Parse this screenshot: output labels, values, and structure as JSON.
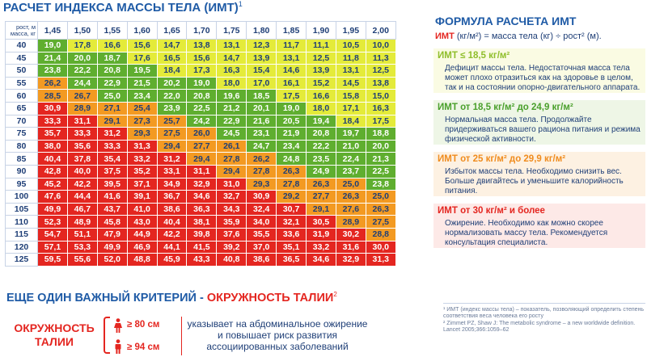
{
  "title": {
    "text": "РАСЧЕТ ИНДЕКСА МАССЫ ТЕЛА (ИМТ)",
    "sup": "1"
  },
  "table": {
    "corner_top": "рост, м",
    "corner_bottom": "масса, кг",
    "heights": [
      "1,45",
      "1,50",
      "1,55",
      "1,60",
      "1,65",
      "1,70",
      "1,75",
      "1,80",
      "1,85",
      "1,90",
      "1,95",
      "2,00"
    ],
    "rows": [
      {
        "mass": "40",
        "cells": [
          [
            "19,0",
            "g"
          ],
          [
            "17,8",
            "y"
          ],
          [
            "16,6",
            "y"
          ],
          [
            "15,6",
            "y"
          ],
          [
            "14,7",
            "y"
          ],
          [
            "13,8",
            "y"
          ],
          [
            "13,1",
            "y"
          ],
          [
            "12,3",
            "y"
          ],
          [
            "11,7",
            "y"
          ],
          [
            "11,1",
            "y"
          ],
          [
            "10,5",
            "y"
          ],
          [
            "10,0",
            "y"
          ]
        ]
      },
      {
        "mass": "45",
        "cells": [
          [
            "21,4",
            "g"
          ],
          [
            "20,0",
            "g"
          ],
          [
            "18,7",
            "g"
          ],
          [
            "17,6",
            "y"
          ],
          [
            "16,5",
            "y"
          ],
          [
            "15,6",
            "y"
          ],
          [
            "14,7",
            "y"
          ],
          [
            "13,9",
            "y"
          ],
          [
            "13,1",
            "y"
          ],
          [
            "12,5",
            "y"
          ],
          [
            "11,8",
            "y"
          ],
          [
            "11,3",
            "y"
          ]
        ]
      },
      {
        "mass": "50",
        "cells": [
          [
            "23,8",
            "g"
          ],
          [
            "22,2",
            "g"
          ],
          [
            "20,8",
            "g"
          ],
          [
            "19,5",
            "g"
          ],
          [
            "18,4",
            "y"
          ],
          [
            "17,3",
            "y"
          ],
          [
            "16,3",
            "y"
          ],
          [
            "15,4",
            "y"
          ],
          [
            "14,6",
            "y"
          ],
          [
            "13,9",
            "y"
          ],
          [
            "13,1",
            "y"
          ],
          [
            "12,5",
            "y"
          ]
        ]
      },
      {
        "mass": "55",
        "cells": [
          [
            "26,2",
            "o"
          ],
          [
            "24,4",
            "g"
          ],
          [
            "22,9",
            "g"
          ],
          [
            "21,5",
            "g"
          ],
          [
            "20,2",
            "g"
          ],
          [
            "19,0",
            "g"
          ],
          [
            "18,0",
            "y"
          ],
          [
            "17,0",
            "y"
          ],
          [
            "16,1",
            "y"
          ],
          [
            "15,2",
            "y"
          ],
          [
            "14,5",
            "y"
          ],
          [
            "13,8",
            "y"
          ]
        ]
      },
      {
        "mass": "60",
        "cells": [
          [
            "28,5",
            "o"
          ],
          [
            "26,7",
            "o"
          ],
          [
            "25,0",
            "g"
          ],
          [
            "23,4",
            "g"
          ],
          [
            "22,0",
            "g"
          ],
          [
            "20,8",
            "g"
          ],
          [
            "19,6",
            "g"
          ],
          [
            "18,5",
            "g"
          ],
          [
            "17,5",
            "y"
          ],
          [
            "16,6",
            "y"
          ],
          [
            "15,8",
            "y"
          ],
          [
            "15,0",
            "y"
          ]
        ]
      },
      {
        "mass": "65",
        "cells": [
          [
            "30,9",
            "r"
          ],
          [
            "28,9",
            "o"
          ],
          [
            "27,1",
            "o"
          ],
          [
            "25,4",
            "o"
          ],
          [
            "23,9",
            "g"
          ],
          [
            "22,5",
            "g"
          ],
          [
            "21,2",
            "g"
          ],
          [
            "20,1",
            "g"
          ],
          [
            "19,0",
            "g"
          ],
          [
            "18,0",
            "y"
          ],
          [
            "17,1",
            "y"
          ],
          [
            "16,3",
            "y"
          ]
        ]
      },
      {
        "mass": "70",
        "cells": [
          [
            "33,3",
            "r"
          ],
          [
            "31,1",
            "r"
          ],
          [
            "29,1",
            "o"
          ],
          [
            "27,3",
            "o"
          ],
          [
            "25,7",
            "o"
          ],
          [
            "24,2",
            "g"
          ],
          [
            "22,9",
            "g"
          ],
          [
            "21,6",
            "g"
          ],
          [
            "20,5",
            "g"
          ],
          [
            "19,4",
            "g"
          ],
          [
            "18,4",
            "y"
          ],
          [
            "17,5",
            "y"
          ]
        ]
      },
      {
        "mass": "75",
        "cells": [
          [
            "35,7",
            "r"
          ],
          [
            "33,3",
            "r"
          ],
          [
            "31,2",
            "r"
          ],
          [
            "29,3",
            "o"
          ],
          [
            "27,5",
            "o"
          ],
          [
            "26,0",
            "o"
          ],
          [
            "24,5",
            "g"
          ],
          [
            "23,1",
            "g"
          ],
          [
            "21,9",
            "g"
          ],
          [
            "20,8",
            "g"
          ],
          [
            "19,7",
            "g"
          ],
          [
            "18,8",
            "g"
          ]
        ]
      },
      {
        "mass": "80",
        "cells": [
          [
            "38,0",
            "r"
          ],
          [
            "35,6",
            "r"
          ],
          [
            "33,3",
            "r"
          ],
          [
            "31,3",
            "r"
          ],
          [
            "29,4",
            "o"
          ],
          [
            "27,7",
            "o"
          ],
          [
            "26,1",
            "o"
          ],
          [
            "24,7",
            "g"
          ],
          [
            "23,4",
            "g"
          ],
          [
            "22,2",
            "g"
          ],
          [
            "21,0",
            "g"
          ],
          [
            "20,0",
            "g"
          ]
        ]
      },
      {
        "mass": "85",
        "cells": [
          [
            "40,4",
            "r"
          ],
          [
            "37,8",
            "r"
          ],
          [
            "35,4",
            "r"
          ],
          [
            "33,2",
            "r"
          ],
          [
            "31,2",
            "r"
          ],
          [
            "29,4",
            "o"
          ],
          [
            "27,8",
            "o"
          ],
          [
            "26,2",
            "o"
          ],
          [
            "24,8",
            "g"
          ],
          [
            "23,5",
            "g"
          ],
          [
            "22,4",
            "g"
          ],
          [
            "21,3",
            "g"
          ]
        ]
      },
      {
        "mass": "90",
        "cells": [
          [
            "42,8",
            "r"
          ],
          [
            "40,0",
            "r"
          ],
          [
            "37,5",
            "r"
          ],
          [
            "35,2",
            "r"
          ],
          [
            "33,1",
            "r"
          ],
          [
            "31,1",
            "r"
          ],
          [
            "29,4",
            "o"
          ],
          [
            "27,8",
            "o"
          ],
          [
            "26,3",
            "o"
          ],
          [
            "24,9",
            "g"
          ],
          [
            "23,7",
            "g"
          ],
          [
            "22,5",
            "g"
          ]
        ]
      },
      {
        "mass": "95",
        "cells": [
          [
            "45,2",
            "r"
          ],
          [
            "42,2",
            "r"
          ],
          [
            "39,5",
            "r"
          ],
          [
            "37,1",
            "r"
          ],
          [
            "34,9",
            "r"
          ],
          [
            "32,9",
            "r"
          ],
          [
            "31,0",
            "r"
          ],
          [
            "29,3",
            "o"
          ],
          [
            "27,8",
            "o"
          ],
          [
            "26,3",
            "o"
          ],
          [
            "25,0",
            "o"
          ],
          [
            "23,8",
            "g"
          ]
        ]
      },
      {
        "mass": "100",
        "cells": [
          [
            "47,6",
            "r"
          ],
          [
            "44,4",
            "r"
          ],
          [
            "41,6",
            "r"
          ],
          [
            "39,1",
            "r"
          ],
          [
            "36,7",
            "r"
          ],
          [
            "34,6",
            "r"
          ],
          [
            "32,7",
            "r"
          ],
          [
            "30,9",
            "r"
          ],
          [
            "29,2",
            "o"
          ],
          [
            "27,7",
            "o"
          ],
          [
            "26,3",
            "o"
          ],
          [
            "25,0",
            "o"
          ]
        ]
      },
      {
        "mass": "105",
        "cells": [
          [
            "49,9",
            "r"
          ],
          [
            "46,7",
            "r"
          ],
          [
            "43,7",
            "r"
          ],
          [
            "41,0",
            "r"
          ],
          [
            "38,6",
            "r"
          ],
          [
            "36,3",
            "r"
          ],
          [
            "34,3",
            "r"
          ],
          [
            "32,4",
            "r"
          ],
          [
            "30,7",
            "r"
          ],
          [
            "29,1",
            "o"
          ],
          [
            "27,6",
            "o"
          ],
          [
            "26,3",
            "o"
          ]
        ]
      },
      {
        "mass": "110",
        "cells": [
          [
            "52,3",
            "r"
          ],
          [
            "48,9",
            "r"
          ],
          [
            "45,8",
            "r"
          ],
          [
            "43,0",
            "r"
          ],
          [
            "40,4",
            "r"
          ],
          [
            "38,1",
            "r"
          ],
          [
            "35,9",
            "r"
          ],
          [
            "34,0",
            "r"
          ],
          [
            "32,1",
            "r"
          ],
          [
            "30,5",
            "r"
          ],
          [
            "28,9",
            "o"
          ],
          [
            "27,5",
            "o"
          ]
        ]
      },
      {
        "mass": "115",
        "cells": [
          [
            "54,7",
            "r"
          ],
          [
            "51,1",
            "r"
          ],
          [
            "47,9",
            "r"
          ],
          [
            "44,9",
            "r"
          ],
          [
            "42,2",
            "r"
          ],
          [
            "39,8",
            "r"
          ],
          [
            "37,6",
            "r"
          ],
          [
            "35,5",
            "r"
          ],
          [
            "33,6",
            "r"
          ],
          [
            "31,9",
            "r"
          ],
          [
            "30,2",
            "r"
          ],
          [
            "28,8",
            "o"
          ]
        ]
      },
      {
        "mass": "120",
        "cells": [
          [
            "57,1",
            "r"
          ],
          [
            "53,3",
            "r"
          ],
          [
            "49,9",
            "r"
          ],
          [
            "46,9",
            "r"
          ],
          [
            "44,1",
            "r"
          ],
          [
            "41,5",
            "r"
          ],
          [
            "39,2",
            "r"
          ],
          [
            "37,0",
            "r"
          ],
          [
            "35,1",
            "r"
          ],
          [
            "33,2",
            "r"
          ],
          [
            "31,6",
            "r"
          ],
          [
            "30,0",
            "r"
          ]
        ]
      },
      {
        "mass": "125",
        "cells": [
          [
            "59,5",
            "r"
          ],
          [
            "55,6",
            "r"
          ],
          [
            "52,0",
            "r"
          ],
          [
            "48,8",
            "r"
          ],
          [
            "45,9",
            "r"
          ],
          [
            "43,3",
            "r"
          ],
          [
            "40,8",
            "r"
          ],
          [
            "38,6",
            "r"
          ],
          [
            "36,5",
            "r"
          ],
          [
            "34,6",
            "r"
          ],
          [
            "32,9",
            "r"
          ],
          [
            "31,3",
            "r"
          ]
        ]
      }
    ]
  },
  "formula": {
    "title": "ФОРМУЛА РАСЧЕТА ИМТ",
    "left": "ИМТ",
    "right": "(кг/м²) = масса тела (кг) ÷ рост² (м)."
  },
  "categories": [
    {
      "key": "yellow",
      "head": "ИМТ ≤ 18,5 кг/м²",
      "desc": "Дефицит массы тела. Недостаточная масса тела может плохо отразиться как на здоровье в целом, так и на состоянии опорно-двигательного аппарата."
    },
    {
      "key": "green",
      "head": "ИМТ от 18,5 кг/м² до 24,9 кг/м²",
      "desc": "Нормальная масса тела. Продолжайте придерживаться вашего рациона питания и режима физической активности."
    },
    {
      "key": "orange",
      "head": "ИМТ от 25 кг/м² до 29,9 кг/м²",
      "desc": "Избыток массы тела. Необходимо снизить вес. Больше двигайтесь и уменьшите калорийность питания."
    },
    {
      "key": "red",
      "head": "ИМТ от 30 кг/м² и более",
      "desc": "Ожирение. Необходимо как можно скорее нормализовать массу тела. Рекомендуется консультация специалиста."
    }
  ],
  "footnotes": {
    "n1": "¹ ИМТ (индекс массы тела) – показатель, позволяющий определить степень соответствия веса человека его росту",
    "n2": "² Zimmet PZ, Shaw J: The metabolic syndrome – a new worldwide definition. Lancet 2005;366:1059–62"
  },
  "waist": {
    "title_a": "ЕЩЕ ОДИН ВАЖНЫЙ КРИТЕРИЙ - ",
    "title_b": "ОКРУЖНОСТЬ ТАЛИИ",
    "title_sup": "2",
    "label": "ОКРУЖНОСТЬ ТАЛИИ",
    "female": "≥ 80 см",
    "male": "≥ 94 см",
    "text": "указывает на абдоминальное ожирение и повышает риск развития ассоциированных заболеваний"
  },
  "colors": {
    "yellow": "#e4eb3a",
    "green": "#5fae2f",
    "orange": "#f39a22",
    "red": "#e42620",
    "navy": "#1f3f77"
  }
}
